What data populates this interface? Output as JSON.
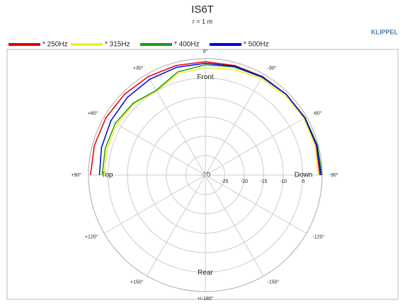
{
  "chart_data": {
    "type": "polar",
    "title": "IS6T",
    "subtitle": "r = 1 m",
    "brand": "KLIPPEL",
    "theta": [
      90,
      75,
      60,
      45,
      30,
      15,
      0,
      -15,
      -30,
      -45,
      -60,
      -75,
      -90
    ],
    "series": [
      {
        "name": "* 250Hz",
        "color": "#e00000",
        "values": [
          -0.5,
          -0.5,
          -0.5,
          -0.6,
          -0.7,
          -0.8,
          -0.8,
          -0.8,
          -0.7,
          -0.6,
          -0.5,
          -0.5,
          -0.6
        ]
      },
      {
        "name": "* 315Hz",
        "color": "#f0f020",
        "values": [
          -4,
          -3.9,
          -3.8,
          -4,
          -5,
          -3,
          -2.3,
          -1.8,
          -1.3,
          -1,
          -0.8,
          -0.8,
          -1
        ]
      },
      {
        "name": "* 400Hz",
        "color": "#1a9a1a",
        "values": [
          -3.5,
          -3.4,
          -3.3,
          -3.8,
          -4.8,
          -2.5,
          -1.6,
          -1.2,
          -0.9,
          -0.6,
          -0.4,
          -0.2,
          0
        ]
      },
      {
        "name": "* 500Hz",
        "color": "#0000e0",
        "values": [
          -2.8,
          -2.4,
          -2,
          -1.7,
          -1.5,
          -1.3,
          -1.2,
          -1,
          -0.8,
          -0.6,
          -0.5,
          -0.4,
          -0.3
        ]
      }
    ],
    "rlim": [
      -30,
      0
    ],
    "rticks": [
      -30,
      -25,
      -20,
      -15,
      -10,
      -5
    ],
    "thetaticks": [
      {
        "value": 0,
        "label": "0°"
      },
      {
        "value": 30,
        "label": "+30°"
      },
      {
        "value": 60,
        "label": "+60°"
      },
      {
        "value": 90,
        "label": "+90°"
      },
      {
        "value": 120,
        "label": "+120°"
      },
      {
        "value": 150,
        "label": "+150°"
      },
      {
        "value": 180,
        "label": "+/-180°"
      },
      {
        "value": -150,
        "label": "-150°"
      },
      {
        "value": -120,
        "label": "-120°"
      },
      {
        "value": -90,
        "label": "-90°"
      },
      {
        "value": -60,
        "label": "-60°"
      },
      {
        "value": -30,
        "label": "-30°"
      }
    ],
    "annotations": [
      {
        "text": "Front",
        "theta": 0
      },
      {
        "text": "Top",
        "theta": 90
      },
      {
        "text": "Down",
        "theta": -90
      },
      {
        "text": "Rear",
        "theta": 180
      }
    ],
    "grid": true
  }
}
